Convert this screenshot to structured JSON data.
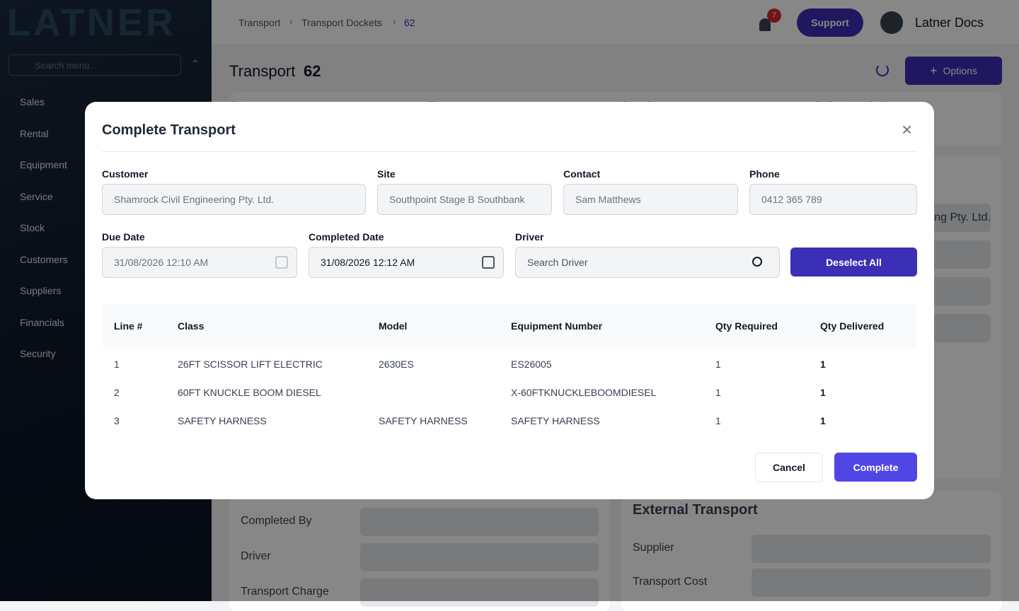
{
  "sidebar": {
    "logo": "LATNER",
    "search_placeholder": "Search menu...",
    "items": [
      "Sales",
      "Rental",
      "Equipment",
      "Service",
      "Stock",
      "Customers",
      "Suppliers",
      "Financials",
      "Security"
    ]
  },
  "header": {
    "breadcrumb": [
      "Transport",
      "Transport Dockets",
      "62"
    ],
    "notifications": "7",
    "support": "Support",
    "user": "Latner Docs"
  },
  "page": {
    "title": "Transport",
    "number": "62",
    "options": "Options",
    "summary": [
      "Status",
      "Type",
      "Branch",
      "Delivery Method"
    ],
    "customer_value": "Shamrock Civil Engineering Pty. Ltd.",
    "left_fields": [
      "Completed By",
      "Driver",
      "Transport Charge"
    ],
    "external_title": "External Transport",
    "external_fields": [
      "Supplier",
      "Transport Cost"
    ]
  },
  "modal": {
    "title": "Complete Transport",
    "fields": [
      {
        "label": "Customer",
        "value": "Shamrock Civil Engineering Pty. Ltd."
      },
      {
        "label": "Site",
        "value": "Southpoint Stage B Southbank"
      },
      {
        "label": "Contact",
        "value": "Sam Matthews"
      },
      {
        "label": "Phone",
        "value": "0412 365 789"
      }
    ],
    "due_date": {
      "label": "Due Date",
      "value": "31/08/2026 12:10 AM"
    },
    "completed_date": {
      "label": "Completed Date",
      "value": "31/08/2026 12:12 AM"
    },
    "driver": {
      "label": "Driver",
      "placeholder": "Search Driver"
    },
    "deselect": "Deselect All",
    "table": {
      "columns": [
        "Line #",
        "Class",
        "Model",
        "Equipment Number",
        "Qty Required",
        "Qty Delivered"
      ],
      "rows": [
        [
          "1",
          "26FT SCISSOR LIFT ELECTRIC",
          "2630ES",
          "ES26005",
          "1",
          "1"
        ],
        [
          "2",
          "60FT KNUCKLE BOOM DIESEL",
          null,
          "X-60FTKNUCKLEBOOMDIESEL",
          "1",
          "1"
        ],
        [
          "3",
          "SAFETY HARNESS",
          "SAFETY HARNESS",
          "SAFETY HARNESS",
          "1",
          "1"
        ]
      ]
    },
    "cancel": "Cancel",
    "complete": "Complete"
  }
}
